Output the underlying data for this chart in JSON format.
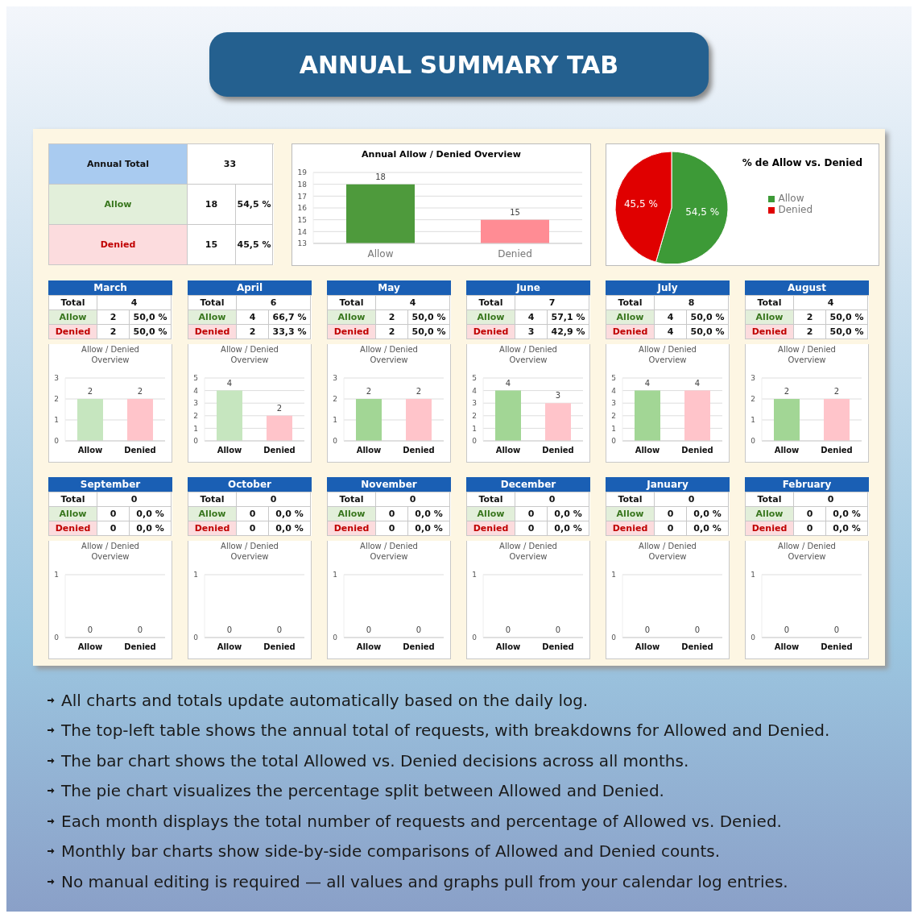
{
  "chart_data": [
    {
      "type": "other",
      "title": "ANNUAL SUMMARY TAB"
    },
    {
      "type": "other",
      "annotations": [
        "Annual Total",
        "33",
        "Allow",
        "18",
        "54,5 %",
        "Denied",
        "15",
        "45,5 %"
      ]
    },
    {
      "type": "bar",
      "title": "Annual Allow / Denied Overview",
      "categories": [
        "Allow",
        "Denied"
      ],
      "values": [
        18,
        15
      ],
      "colors": [
        "#4e9a3c",
        "#ff8c94"
      ],
      "ylim": [
        13,
        19
      ],
      "yticks": [
        13,
        14,
        15,
        16,
        17,
        18,
        19
      ],
      "grid": "y",
      "data_labels": true
    },
    {
      "type": "pie",
      "title": "% de Allow vs. Denied",
      "categories": [
        "Allow",
        "Denied"
      ],
      "values": [
        54.5,
        45.5
      ],
      "value_labels": [
        "54,5 %",
        "45,5 %"
      ],
      "colors": [
        "#3d9a37",
        "#e00000"
      ],
      "legend": "right"
    },
    {
      "type": "bar",
      "title": "March",
      "subtitle": "Allow / Denied Overview",
      "categories": [
        "Allow",
        "Denied"
      ],
      "values": [
        2,
        2
      ],
      "colors": [
        "#c6e6bf",
        "#ffc4ca"
      ],
      "ylim": [
        0,
        3
      ],
      "yticks": [
        0,
        1,
        2,
        3
      ],
      "grid": "y",
      "data_labels": true,
      "annotations": [
        "Total",
        "4",
        "Allow",
        "2",
        "50,0 %",
        "Denied",
        "2",
        "50,0 %"
      ]
    },
    {
      "type": "bar",
      "title": "April",
      "subtitle": "Allow / Denied Overview",
      "categories": [
        "Allow",
        "Denied"
      ],
      "values": [
        4,
        2
      ],
      "colors": [
        "#c6e6bf",
        "#ffc4ca"
      ],
      "ylim": [
        0,
        5
      ],
      "yticks": [
        0,
        1,
        2,
        3,
        4,
        5
      ],
      "grid": "y",
      "data_labels": true,
      "annotations": [
        "Total",
        "6",
        "Allow",
        "4",
        "66,7 %",
        "Denied",
        "2",
        "33,3 %"
      ]
    },
    {
      "type": "bar",
      "title": "May",
      "subtitle": "Allow / Denied Overview",
      "categories": [
        "Allow",
        "Denied"
      ],
      "values": [
        2,
        2
      ],
      "colors": [
        "#a2d695",
        "#ffc4ca"
      ],
      "ylim": [
        0,
        3
      ],
      "yticks": [
        0,
        1,
        2,
        3
      ],
      "grid": "y",
      "data_labels": true,
      "annotations": [
        "Total",
        "4",
        "Allow",
        "2",
        "50,0 %",
        "Denied",
        "2",
        "50,0 %"
      ]
    },
    {
      "type": "bar",
      "title": "June",
      "subtitle": "Allow / Denied Overview",
      "categories": [
        "Allow",
        "Denied"
      ],
      "values": [
        4,
        3
      ],
      "colors": [
        "#a2d695",
        "#ffc4ca"
      ],
      "ylim": [
        0,
        5
      ],
      "yticks": [
        0,
        1,
        2,
        3,
        4,
        5
      ],
      "grid": "y",
      "data_labels": true,
      "annotations": [
        "Total",
        "7",
        "Allow",
        "4",
        "57,1 %",
        "Denied",
        "3",
        "42,9 %"
      ]
    },
    {
      "type": "bar",
      "title": "July",
      "subtitle": "Allow / Denied Overview",
      "categories": [
        "Allow",
        "Denied"
      ],
      "values": [
        4,
        4
      ],
      "colors": [
        "#a2d695",
        "#ffc4ca"
      ],
      "ylim": [
        0,
        5
      ],
      "yticks": [
        0,
        1,
        2,
        3,
        4,
        5
      ],
      "grid": "y",
      "data_labels": true,
      "annotations": [
        "Total",
        "8",
        "Allow",
        "4",
        "50,0 %",
        "Denied",
        "4",
        "50,0 %"
      ]
    },
    {
      "type": "bar",
      "title": "August",
      "subtitle": "Allow / Denied Overview",
      "categories": [
        "Allow",
        "Denied"
      ],
      "values": [
        2,
        2
      ],
      "colors": [
        "#a2d695",
        "#ffc4ca"
      ],
      "ylim": [
        0,
        3
      ],
      "yticks": [
        0,
        1,
        2,
        3
      ],
      "grid": "y",
      "data_labels": true,
      "annotations": [
        "Total",
        "4",
        "Allow",
        "2",
        "50,0 %",
        "Denied",
        "2",
        "50,0 %"
      ]
    },
    {
      "type": "bar",
      "title": "September",
      "subtitle": "Allow / Denied Overview",
      "categories": [
        "Allow",
        "Denied"
      ],
      "values": [
        0,
        0
      ],
      "colors": [
        "#a2d695",
        "#ffc4ca"
      ],
      "ylim": [
        0,
        1
      ],
      "yticks": [
        0,
        1
      ],
      "grid": "y",
      "data_labels": true,
      "annotations": [
        "Total",
        "0",
        "Allow",
        "0",
        "0,0 %",
        "Denied",
        "0",
        "0,0 %"
      ]
    },
    {
      "type": "bar",
      "title": "October",
      "subtitle": "Allow / Denied Overview",
      "categories": [
        "Allow",
        "Denied"
      ],
      "values": [
        0,
        0
      ],
      "colors": [
        "#a2d695",
        "#ffc4ca"
      ],
      "ylim": [
        0,
        1
      ],
      "yticks": [
        0,
        1
      ],
      "grid": "y",
      "data_labels": true,
      "annotations": [
        "Total",
        "0",
        "Allow",
        "0",
        "0,0 %",
        "Denied",
        "0",
        "0,0 %"
      ]
    },
    {
      "type": "bar",
      "title": "November",
      "subtitle": "Allow / Denied Overview",
      "categories": [
        "Allow",
        "Denied"
      ],
      "values": [
        0,
        0
      ],
      "colors": [
        "#a2d695",
        "#ffc4ca"
      ],
      "ylim": [
        0,
        1
      ],
      "yticks": [
        0,
        1
      ],
      "grid": "y",
      "data_labels": true,
      "annotations": [
        "Total",
        "0",
        "Allow",
        "0",
        "0,0 %",
        "Denied",
        "0",
        "0,0 %"
      ]
    },
    {
      "type": "bar",
      "title": "December",
      "subtitle": "Allow / Denied Overview",
      "categories": [
        "Allow",
        "Denied"
      ],
      "values": [
        0,
        0
      ],
      "colors": [
        "#a2d695",
        "#ffc4ca"
      ],
      "ylim": [
        0,
        1
      ],
      "yticks": [
        0,
        1
      ],
      "grid": "y",
      "data_labels": true,
      "annotations": [
        "Total",
        "0",
        "Allow",
        "0",
        "0,0 %",
        "Denied",
        "0",
        "0,0 %"
      ]
    },
    {
      "type": "bar",
      "title": "January",
      "subtitle": "Allow / Denied Overview",
      "categories": [
        "Allow",
        "Denied"
      ],
      "values": [
        0,
        0
      ],
      "colors": [
        "#a2d695",
        "#ffc4ca"
      ],
      "ylim": [
        0,
        1
      ],
      "yticks": [
        0,
        1
      ],
      "grid": "y",
      "data_labels": true,
      "annotations": [
        "Total",
        "0",
        "Allow",
        "0",
        "0,0 %",
        "Denied",
        "0",
        "0,0 %"
      ]
    },
    {
      "type": "bar",
      "title": "February",
      "subtitle": "Allow / Denied Overview",
      "categories": [
        "Allow",
        "Denied"
      ],
      "values": [
        0,
        0
      ],
      "colors": [
        "#a2d695",
        "#ffc4ca"
      ],
      "ylim": [
        0,
        1
      ],
      "yticks": [
        0,
        1
      ],
      "grid": "y",
      "data_labels": true,
      "annotations": [
        "Total",
        "0",
        "Allow",
        "0",
        "0,0 %",
        "Denied",
        "0",
        "0,0 %"
      ]
    },
    {
      "type": "other",
      "annotations": [
        "All charts and totals update automatically based on the daily log.",
        "The top-left table shows the annual total of requests, with breakdowns for Allowed and Denied.",
        "The bar chart shows the total Allowed vs. Denied decisions across all months.",
        "The pie chart visualizes the percentage split between Allowed and Denied.",
        "Each month displays the total number of requests and percentage of Allowed vs. Denied.",
        "Monthly bar charts show side-by-side comparisons of Allowed and Denied counts.",
        "No manual editing is required — all values and graphs pull from your calendar log entries."
      ]
    }
  ]
}
